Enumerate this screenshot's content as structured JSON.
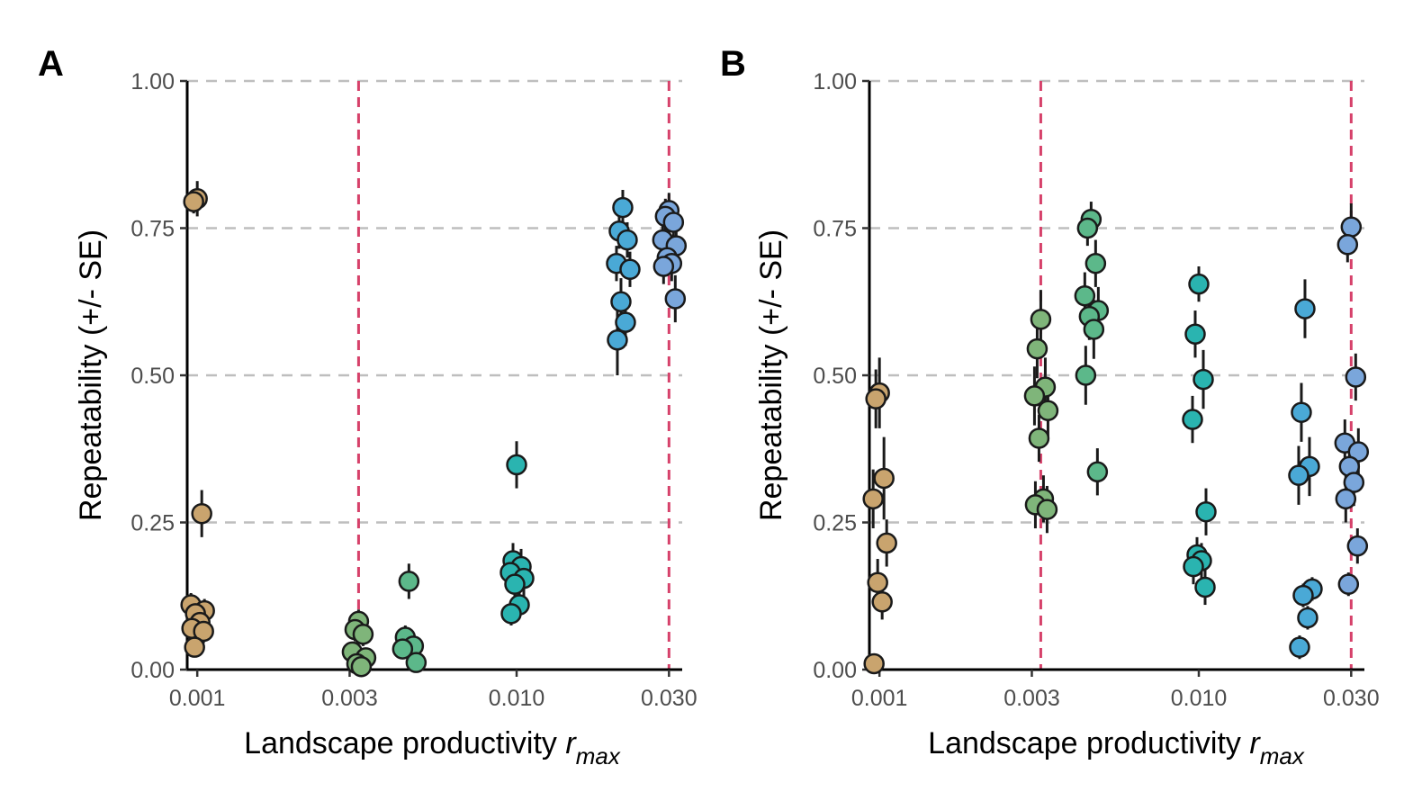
{
  "colors": {
    "grid": "#bebebe",
    "ref_line": "#d6416a",
    "point_stroke": "#1a1a1a",
    "palette": [
      "#c9a46e",
      "#7fb57a",
      "#5cb88a",
      "#2ab4b0",
      "#4aa9d6",
      "#7aa6db"
    ]
  },
  "chart_data": [
    {
      "type": "scatter",
      "panel_label": "A",
      "xlabel": "Landscape productivity r",
      "xlabel_subscript": "max",
      "ylabel": "Repeatability (+/- SE)",
      "x_scale": "log",
      "xlim": [
        0.00093,
        0.033
      ],
      "ylim": [
        0,
        1
      ],
      "x_ticks": [
        0.001,
        0.003,
        0.01,
        0.03
      ],
      "x_tick_labels": [
        "0.001",
        "0.003",
        "0.010",
        "0.030"
      ],
      "y_ticks": [
        0,
        0.25,
        0.5,
        0.75,
        1.0
      ],
      "y_tick_labels": [
        "0.00",
        "0.25",
        "0.50",
        "0.75",
        "1.00"
      ],
      "grid_y": [
        0.25,
        0.5,
        0.75,
        1.0
      ],
      "ref_lines_x": [
        0.0032,
        0.03
      ],
      "series": [
        {
          "x": 0.001,
          "color_index": 0,
          "points": [
            {
              "y": 0.8,
              "se": 0.03
            },
            {
              "y": 0.795,
              "se": 0.02
            },
            {
              "y": 0.265,
              "se": 0.04
            },
            {
              "y": 0.11,
              "se": 0.02
            },
            {
              "y": 0.1,
              "se": 0.02
            },
            {
              "y": 0.095,
              "se": 0.02
            },
            {
              "y": 0.08,
              "se": 0.02
            },
            {
              "y": 0.07,
              "se": 0.02
            },
            {
              "y": 0.065,
              "se": 0.02
            },
            {
              "y": 0.038,
              "se": 0.01
            }
          ]
        },
        {
          "x": 0.0032,
          "color_index": 1,
          "points": [
            {
              "y": 0.082,
              "se": 0.02
            },
            {
              "y": 0.068,
              "se": 0.02
            },
            {
              "y": 0.06,
              "se": 0.02
            },
            {
              "y": 0.03,
              "se": 0.01
            },
            {
              "y": 0.02,
              "se": 0.01
            },
            {
              "y": 0.01,
              "se": 0.01
            },
            {
              "y": 0.005,
              "se": 0.005
            }
          ]
        },
        {
          "x": 0.0046,
          "color_index": 2,
          "points": [
            {
              "y": 0.15,
              "se": 0.03
            },
            {
              "y": 0.055,
              "se": 0.02
            },
            {
              "y": 0.04,
              "se": 0.02
            },
            {
              "y": 0.035,
              "se": 0.01
            },
            {
              "y": 0.012,
              "se": 0.01
            }
          ]
        },
        {
          "x": 0.01,
          "color_index": 3,
          "points": [
            {
              "y": 0.348,
              "se": 0.04
            },
            {
              "y": 0.185,
              "se": 0.03
            },
            {
              "y": 0.175,
              "se": 0.03
            },
            {
              "y": 0.165,
              "se": 0.03
            },
            {
              "y": 0.155,
              "se": 0.03
            },
            {
              "y": 0.145,
              "se": 0.03
            },
            {
              "y": 0.11,
              "se": 0.02
            },
            {
              "y": 0.095,
              "se": 0.02
            }
          ]
        },
        {
          "x": 0.0215,
          "color_index": 4,
          "points": [
            {
              "y": 0.785,
              "se": 0.03
            },
            {
              "y": 0.745,
              "se": 0.03
            },
            {
              "y": 0.73,
              "se": 0.03
            },
            {
              "y": 0.69,
              "se": 0.03
            },
            {
              "y": 0.68,
              "se": 0.03
            },
            {
              "y": 0.625,
              "se": 0.04
            },
            {
              "y": 0.59,
              "se": 0.04
            },
            {
              "y": 0.56,
              "se": 0.06
            }
          ]
        },
        {
          "x": 0.03,
          "color_index": 5,
          "points": [
            {
              "y": 0.78,
              "se": 0.03
            },
            {
              "y": 0.77,
              "se": 0.03
            },
            {
              "y": 0.76,
              "se": 0.03
            },
            {
              "y": 0.73,
              "se": 0.03
            },
            {
              "y": 0.72,
              "se": 0.03
            },
            {
              "y": 0.7,
              "se": 0.03
            },
            {
              "y": 0.69,
              "se": 0.03
            },
            {
              "y": 0.685,
              "se": 0.03
            },
            {
              "y": 0.63,
              "se": 0.04
            }
          ]
        }
      ]
    },
    {
      "type": "scatter",
      "panel_label": "B",
      "xlabel": "Landscape productivity r",
      "xlabel_subscript": "max",
      "ylabel": "Repeatability (+/- SE)",
      "x_scale": "log",
      "xlim": [
        0.00093,
        0.033
      ],
      "ylim": [
        0,
        1
      ],
      "x_ticks": [
        0.001,
        0.003,
        0.01,
        0.03
      ],
      "x_tick_labels": [
        "0.001",
        "0.003",
        "0.010",
        "0.030"
      ],
      "y_ticks": [
        0,
        0.25,
        0.5,
        0.75,
        1.0
      ],
      "y_tick_labels": [
        "0.00",
        "0.25",
        "0.50",
        "0.75",
        "1.00"
      ],
      "grid_y": [
        0.25,
        0.5,
        0.75,
        1.0
      ],
      "ref_lines_x": [
        0.0032,
        0.03
      ],
      "series": [
        {
          "x": 0.001,
          "color_index": 0,
          "points": [
            {
              "y": 0.47,
              "se": 0.06
            },
            {
              "y": 0.46,
              "se": 0.05
            },
            {
              "y": 0.325,
              "se": 0.07
            },
            {
              "y": 0.29,
              "se": 0.05
            },
            {
              "y": 0.215,
              "se": 0.04
            },
            {
              "y": 0.148,
              "se": 0.04
            },
            {
              "y": 0.115,
              "se": 0.03
            },
            {
              "y": 0.01,
              "se": 0.01
            }
          ]
        },
        {
          "x": 0.0032,
          "color_index": 1,
          "points": [
            {
              "y": 0.595,
              "se": 0.05
            },
            {
              "y": 0.545,
              "se": 0.05
            },
            {
              "y": 0.48,
              "se": 0.05
            },
            {
              "y": 0.465,
              "se": 0.05
            },
            {
              "y": 0.44,
              "se": 0.05
            },
            {
              "y": 0.393,
              "se": 0.04
            },
            {
              "y": 0.29,
              "se": 0.04
            },
            {
              "y": 0.28,
              "se": 0.04
            },
            {
              "y": 0.272,
              "se": 0.04
            }
          ]
        },
        {
          "x": 0.0046,
          "color_index": 2,
          "points": [
            {
              "y": 0.765,
              "se": 0.03
            },
            {
              "y": 0.75,
              "se": 0.03
            },
            {
              "y": 0.69,
              "se": 0.04
            },
            {
              "y": 0.635,
              "se": 0.04
            },
            {
              "y": 0.61,
              "se": 0.04
            },
            {
              "y": 0.6,
              "se": 0.04
            },
            {
              "y": 0.578,
              "se": 0.05
            },
            {
              "y": 0.5,
              "se": 0.05
            },
            {
              "y": 0.336,
              "se": 0.04
            }
          ]
        },
        {
          "x": 0.01,
          "color_index": 3,
          "points": [
            {
              "y": 0.655,
              "se": 0.03
            },
            {
              "y": 0.57,
              "se": 0.04
            },
            {
              "y": 0.493,
              "se": 0.05
            },
            {
              "y": 0.425,
              "se": 0.04
            },
            {
              "y": 0.268,
              "se": 0.04
            },
            {
              "y": 0.195,
              "se": 0.03
            },
            {
              "y": 0.185,
              "se": 0.03
            },
            {
              "y": 0.175,
              "se": 0.03
            },
            {
              "y": 0.14,
              "se": 0.03
            }
          ]
        },
        {
          "x": 0.0215,
          "color_index": 4,
          "points": [
            {
              "y": 0.613,
              "se": 0.05
            },
            {
              "y": 0.437,
              "se": 0.05
            },
            {
              "y": 0.345,
              "se": 0.05
            },
            {
              "y": 0.33,
              "se": 0.05
            },
            {
              "y": 0.137,
              "se": 0.02
            },
            {
              "y": 0.126,
              "se": 0.02
            },
            {
              "y": 0.088,
              "se": 0.02
            },
            {
              "y": 0.038,
              "se": 0.02
            }
          ]
        },
        {
          "x": 0.03,
          "color_index": 5,
          "points": [
            {
              "y": 0.752,
              "se": 0.04
            },
            {
              "y": 0.722,
              "se": 0.03
            },
            {
              "y": 0.497,
              "se": 0.04
            },
            {
              "y": 0.385,
              "se": 0.04
            },
            {
              "y": 0.37,
              "se": 0.04
            },
            {
              "y": 0.345,
              "se": 0.04
            },
            {
              "y": 0.318,
              "se": 0.04
            },
            {
              "y": 0.29,
              "se": 0.04
            },
            {
              "y": 0.21,
              "se": 0.03
            },
            {
              "y": 0.145,
              "se": 0.02
            }
          ]
        }
      ]
    }
  ]
}
